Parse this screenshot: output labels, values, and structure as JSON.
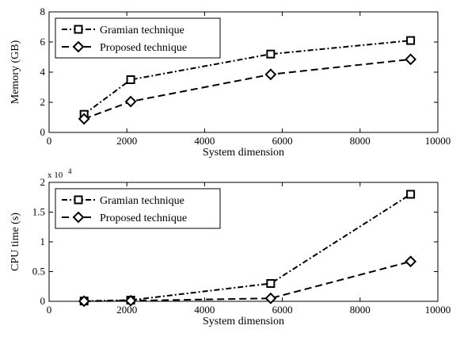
{
  "chart_data": [
    {
      "type": "line",
      "title": "",
      "xlabel": "System dimension",
      "ylabel": "Memory (GB)",
      "xlim": [
        0,
        10000
      ],
      "ylim": [
        0,
        8
      ],
      "xticks": [
        "0",
        "2000",
        "4000",
        "6000",
        "8000",
        "10000"
      ],
      "yticks": [
        "0",
        "2",
        "4",
        "6",
        "8"
      ],
      "y_multiplier": "",
      "grid": false,
      "legend_position": "top-left",
      "series": [
        {
          "name": "Gramian technique",
          "marker": "square",
          "style": "dashdot",
          "x": [
            900,
            2100,
            5700,
            9300
          ],
          "y": [
            1.2,
            3.5,
            5.2,
            6.1
          ]
        },
        {
          "name": "Proposed technique",
          "marker": "diamond",
          "style": "dashed",
          "x": [
            900,
            2100,
            5700,
            9300
          ],
          "y": [
            0.9,
            2.05,
            3.85,
            4.85
          ]
        }
      ]
    },
    {
      "type": "line",
      "title": "",
      "xlabel": "System dimension",
      "ylabel": "CPU time (s)",
      "xlim": [
        0,
        10000
      ],
      "ylim": [
        0,
        2
      ],
      "xticks": [
        "0",
        "2000",
        "4000",
        "6000",
        "8000",
        "10000"
      ],
      "yticks": [
        "0",
        "0.5",
        "1",
        "1.5",
        "2"
      ],
      "y_multiplier": "x 10",
      "y_multiplier_exp": "4",
      "grid": false,
      "legend_position": "top-left",
      "series": [
        {
          "name": "Gramian technique",
          "marker": "square",
          "style": "dashdot",
          "x": [
            900,
            2100,
            5700,
            9300
          ],
          "y": [
            0.005,
            0.02,
            0.3,
            1.8
          ]
        },
        {
          "name": "Proposed technique",
          "marker": "diamond",
          "style": "dashed",
          "x": [
            900,
            2100,
            5700,
            9300
          ],
          "y": [
            0.002,
            0.01,
            0.05,
            0.67
          ]
        }
      ]
    }
  ]
}
